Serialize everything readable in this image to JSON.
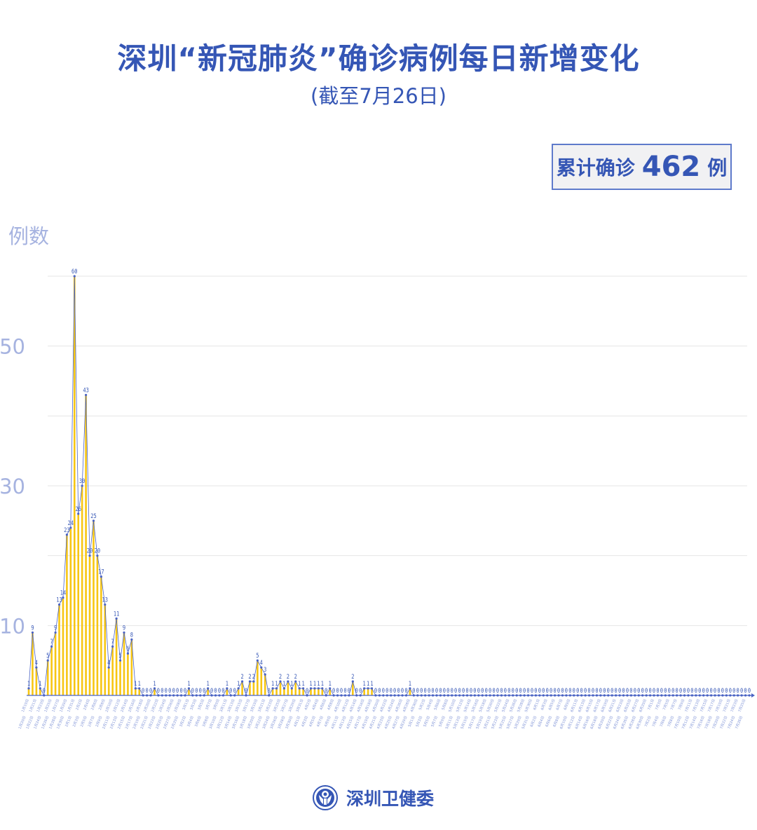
{
  "title": "深圳“新冠肺炎”确诊病例每日新增变化",
  "subtitle": "(截至7月26日)",
  "total": {
    "label": "累计确诊",
    "value": "462",
    "unit": "例"
  },
  "footer": {
    "org": "深圳卫健委",
    "logo_icon": "health-commission-emblem-icon"
  },
  "colors": {
    "title": "#3556B5",
    "bar": "#F7C613",
    "line": "#4A63C4",
    "axis_text": "#A6B3E0",
    "grid": "#E4E4E4"
  },
  "chart_data": {
    "type": "bar",
    "ylabel": "例数",
    "ylim": [
      0,
      60
    ],
    "yticks": [
      10,
      30,
      50
    ],
    "grid": true,
    "overlay_line": true,
    "data_labels": true,
    "categories": [
      "1月19日",
      "1月20日",
      "1月21日",
      "1月22日",
      "1月23日",
      "1月24日",
      "1月25日",
      "1月26日",
      "1月27日",
      "1月28日",
      "1月29日",
      "1月30日",
      "1月31日",
      "2月1日",
      "2月2日",
      "2月3日",
      "2月4日",
      "2月5日",
      "2月6日",
      "2月7日",
      "2月8日",
      "2月9日",
      "2月10日",
      "2月11日",
      "2月12日",
      "2月13日",
      "2月14日",
      "2月15日",
      "2月16日",
      "2月17日",
      "2月18日",
      "2月19日",
      "2月20日",
      "2月21日",
      "2月22日",
      "2月23日",
      "2月24日",
      "2月25日",
      "2月26日",
      "2月27日",
      "2月28日",
      "2月29日",
      "3月1日",
      "3月2日",
      "3月3日",
      "3月4日",
      "3月5日",
      "3月6日",
      "3月7日",
      "3月8日",
      "3月9日",
      "3月10日",
      "3月11日",
      "3月12日",
      "3月13日",
      "3月14日",
      "3月15日",
      "3月16日",
      "3月17日",
      "3月18日",
      "3月19日",
      "3月20日",
      "3月21日",
      "3月22日",
      "3月23日",
      "3月24日",
      "3月25日",
      "3月26日",
      "3月27日",
      "3月28日",
      "3月29日",
      "3月30日",
      "3月31日",
      "4月1日",
      "4月2日",
      "4月3日",
      "4月4日",
      "4月5日",
      "4月6日",
      "4月7日",
      "4月8日",
      "4月9日",
      "4月10日",
      "4月11日",
      "4月12日",
      "4月13日",
      "4月14日",
      "4月15日",
      "4月16日",
      "4月17日",
      "4月18日",
      "4月19日",
      "4月20日",
      "4月21日",
      "4月22日",
      "4月23日",
      "4月24日",
      "4月25日",
      "4月26日",
      "4月27日",
      "4月28日",
      "4月29日",
      "4月30日",
      "5月1日",
      "5月2日",
      "5月3日",
      "5月4日",
      "5月5日",
      "5月6日",
      "5月7日",
      "5月8日",
      "5月9日",
      "5月10日",
      "5月11日",
      "5月12日",
      "5月13日",
      "5月14日",
      "5月15日",
      "5月16日",
      "5月17日",
      "5月18日",
      "5月19日",
      "5月20日",
      "5月21日",
      "5月22日",
      "5月23日",
      "5月24日",
      "5月25日",
      "5月26日",
      "5月27日",
      "5月28日",
      "5月29日",
      "5月30日",
      "5月31日",
      "6月1日",
      "6月2日",
      "6月3日",
      "6月4日",
      "6月5日",
      "6月6日",
      "6月7日",
      "6月8日",
      "6月9日",
      "6月10日",
      "6月11日",
      "6月12日",
      "6月13日",
      "6月14日",
      "6月15日",
      "6月16日",
      "6月17日",
      "6月18日",
      "6月19日",
      "6月20日",
      "6月21日",
      "6月22日",
      "6月23日",
      "6月24日",
      "6月25日",
      "6月26日",
      "6月27日",
      "6月28日",
      "6月29日",
      "6月30日",
      "7月1日",
      "7月2日",
      "7月3日",
      "7月4日",
      "7月5日",
      "7月6日",
      "7月7日",
      "7月8日",
      "7月9日",
      "7月10日",
      "7月11日",
      "7月12日",
      "7月13日",
      "7月14日",
      "7月15日",
      "7月16日",
      "7月17日",
      "7月18日",
      "7月19日",
      "7月20日",
      "7月21日",
      "7月22日",
      "7月23日",
      "7月24日",
      "7月25日",
      "7月26日"
    ],
    "values": [
      1,
      9,
      4,
      1,
      0,
      5,
      7,
      9,
      13,
      14,
      23,
      24,
      60,
      26,
      30,
      43,
      20,
      25,
      20,
      17,
      13,
      4,
      7,
      11,
      5,
      9,
      6,
      8,
      1,
      1,
      0,
      0,
      0,
      1,
      0,
      0,
      0,
      0,
      0,
      0,
      0,
      0,
      1,
      0,
      0,
      0,
      0,
      1,
      0,
      0,
      0,
      0,
      1,
      0,
      0,
      1,
      2,
      0,
      2,
      2,
      5,
      4,
      3,
      0,
      1,
      1,
      2,
      1,
      2,
      1,
      2,
      1,
      1,
      0,
      1,
      1,
      1,
      1,
      0,
      1,
      0,
      0,
      0,
      0,
      0,
      2,
      0,
      0,
      1,
      1,
      1,
      0,
      0,
      0,
      0,
      0,
      0,
      0,
      0,
      0,
      1,
      0,
      0,
      0,
      0,
      0,
      0,
      0,
      0,
      0,
      0,
      0,
      0,
      0,
      0,
      0,
      0,
      0,
      0,
      0,
      0,
      0,
      0,
      0,
      0,
      0,
      0,
      0,
      0,
      0,
      0,
      0,
      0,
      0,
      0,
      0,
      0,
      0,
      0,
      0,
      0,
      0,
      0,
      0,
      0,
      0,
      0,
      0,
      0,
      0,
      0,
      0,
      0,
      0,
      0,
      0,
      0,
      0,
      0,
      0,
      0,
      0,
      0,
      0,
      0,
      0,
      0,
      0,
      0,
      0,
      0,
      0,
      0,
      0,
      0,
      0,
      0,
      0,
      0,
      0,
      0,
      0,
      0,
      0,
      0,
      0,
      0,
      0,
      0,
      0
    ]
  }
}
